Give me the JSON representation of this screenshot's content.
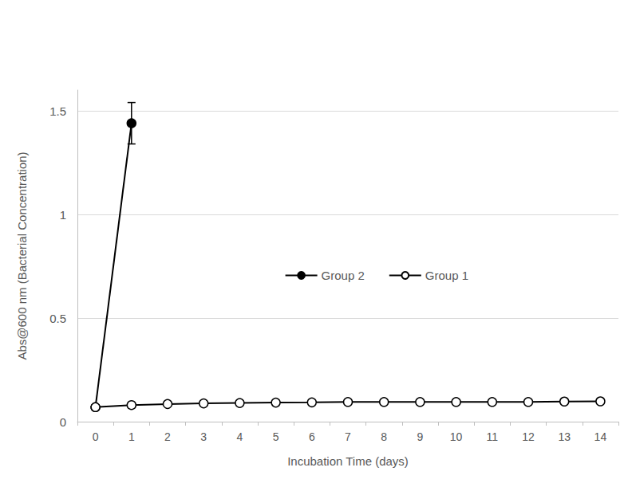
{
  "chart_data": {
    "type": "line",
    "x_label": "Incubation Time (days)",
    "y_label": "Abs@600 nm (Bacterial Concentration)",
    "categories": [
      "0",
      "1",
      "2",
      "3",
      "4",
      "5",
      "6",
      "7",
      "8",
      "9",
      "10",
      "11",
      "12",
      "13",
      "14"
    ],
    "series": [
      {
        "name": "Group 2",
        "color": "#000000",
        "marker": "circle",
        "line_style": "solid",
        "values": [
          0.07,
          1.44,
          null,
          null,
          null,
          null,
          null,
          null,
          null,
          null,
          null,
          null,
          null,
          null,
          null
        ],
        "errors": [
          null,
          0.1,
          null,
          null,
          null,
          null,
          null,
          null,
          null,
          null,
          null,
          null,
          null,
          null,
          null
        ]
      },
      {
        "name": "Group 1",
        "color": "#000000",
        "marker": "open_circle",
        "line_style": "solid",
        "values": [
          0.07,
          0.08,
          0.085,
          0.088,
          0.09,
          0.092,
          0.093,
          0.095,
          0.095,
          0.095,
          0.095,
          0.095,
          0.095,
          0.097,
          0.098
        ]
      }
    ],
    "ylim": [
      0,
      1.6
    ],
    "yticks": [
      0,
      0.5,
      1,
      1.5
    ],
    "grid": true,
    "legend": "right"
  }
}
